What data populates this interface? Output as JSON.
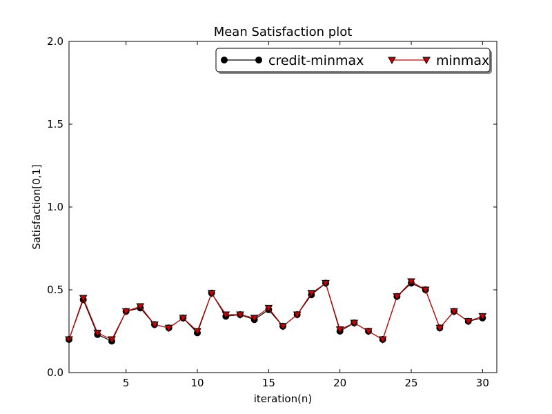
{
  "chart_data": {
    "type": "line",
    "title": "Mean Satisfaction plot",
    "xlabel": "iteration(n)",
    "ylabel": "Satisfaction[0,1]",
    "xlim": [
      1,
      31
    ],
    "ylim": [
      0.0,
      2.0
    ],
    "xticks": [
      5,
      10,
      15,
      20,
      25,
      30
    ],
    "xtick_labels": [
      "5",
      "10",
      "15",
      "20",
      "25",
      "30"
    ],
    "yticks": [
      0.0,
      0.5,
      1.0,
      1.5,
      2.0
    ],
    "ytick_labels": [
      "0.0",
      "0.5",
      "1.0",
      "1.5",
      "2.0"
    ],
    "grid": false,
    "legend_position": "top-right",
    "x": [
      1,
      2,
      3,
      4,
      5,
      6,
      7,
      8,
      9,
      10,
      11,
      12,
      13,
      14,
      15,
      16,
      17,
      18,
      19,
      20,
      21,
      22,
      23,
      24,
      25,
      26,
      27,
      28,
      29,
      30
    ],
    "series": [
      {
        "name": "credit-minmax",
        "color": "#000000",
        "marker": "circle",
        "values": [
          0.2,
          0.44,
          0.23,
          0.19,
          0.37,
          0.39,
          0.29,
          0.27,
          0.33,
          0.24,
          0.48,
          0.34,
          0.35,
          0.32,
          0.38,
          0.28,
          0.35,
          0.47,
          0.54,
          0.25,
          0.3,
          0.25,
          0.2,
          0.46,
          0.54,
          0.5,
          0.27,
          0.37,
          0.31,
          0.33
        ]
      },
      {
        "name": "minmax",
        "color": "#cc0000",
        "marker": "triangle-down",
        "values": [
          0.2,
          0.45,
          0.24,
          0.2,
          0.37,
          0.4,
          0.29,
          0.27,
          0.33,
          0.25,
          0.48,
          0.35,
          0.35,
          0.33,
          0.39,
          0.28,
          0.35,
          0.48,
          0.54,
          0.26,
          0.3,
          0.25,
          0.2,
          0.46,
          0.55,
          0.5,
          0.27,
          0.37,
          0.31,
          0.34
        ]
      }
    ]
  }
}
